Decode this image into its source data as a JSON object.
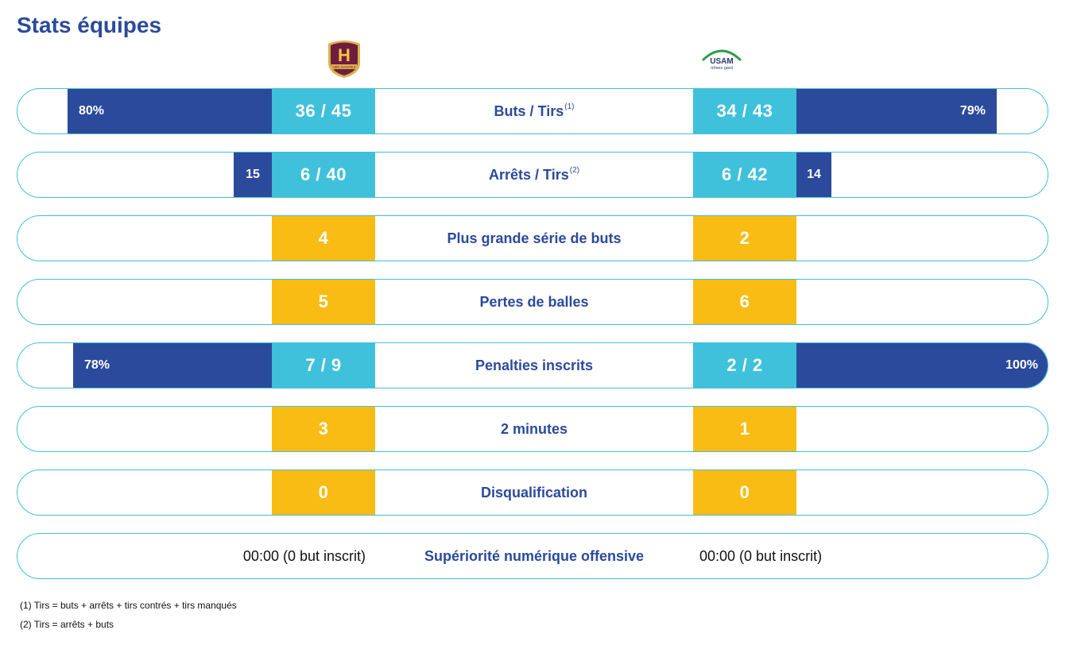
{
  "page": {
    "title": "Stats équipes"
  },
  "teams": {
    "home": {
      "logo_text": "H",
      "logo_sub": "HBC NANTES"
    },
    "away": {
      "logo_text": "USAM",
      "logo_sub": "nîmes gard"
    }
  },
  "colors": {
    "blue": "#2b4a9b",
    "cyan": "#3fc1dc",
    "yellow": "#f9bc15",
    "border": "#3fc1d9"
  },
  "rows": [
    {
      "label": "Buts / Tirs",
      "note_ref": "(1)",
      "home_value": "36 / 45",
      "away_value": "34 / 43",
      "home_pct_label": "80%",
      "away_pct_label": "79%",
      "home_pct": 80,
      "away_pct": 79
    },
    {
      "label": "Arrêts / Tirs",
      "note_ref": "(2)",
      "home_value": "6 / 40",
      "away_value": "6 / 42",
      "home_pct_label": "15",
      "away_pct_label": "14",
      "home_pct": 15,
      "away_pct": 14
    },
    {
      "label": "Plus grande série de buts",
      "home_value": "4",
      "away_value": "2"
    },
    {
      "label": "Pertes de balles",
      "home_value": "5",
      "away_value": "6"
    },
    {
      "label": "Penalties inscrits",
      "home_value": "7 / 9",
      "away_value": "2 / 2",
      "home_pct_label": "78%",
      "away_pct_label": "100%",
      "home_pct": 78,
      "away_pct": 100
    },
    {
      "label": "2 minutes",
      "home_value": "3",
      "away_value": "1"
    },
    {
      "label": "Disqualification",
      "home_value": "0",
      "away_value": "0"
    },
    {
      "label": "Supériorité numérique offensive",
      "home_value": "00:00 (0 but inscrit)",
      "away_value": "00:00 (0 but inscrit)"
    }
  ],
  "footnotes": [
    "(1) Tirs = buts + arrêts + tirs contrés + tirs manqués",
    "(2) Tirs = arrêts + buts"
  ]
}
